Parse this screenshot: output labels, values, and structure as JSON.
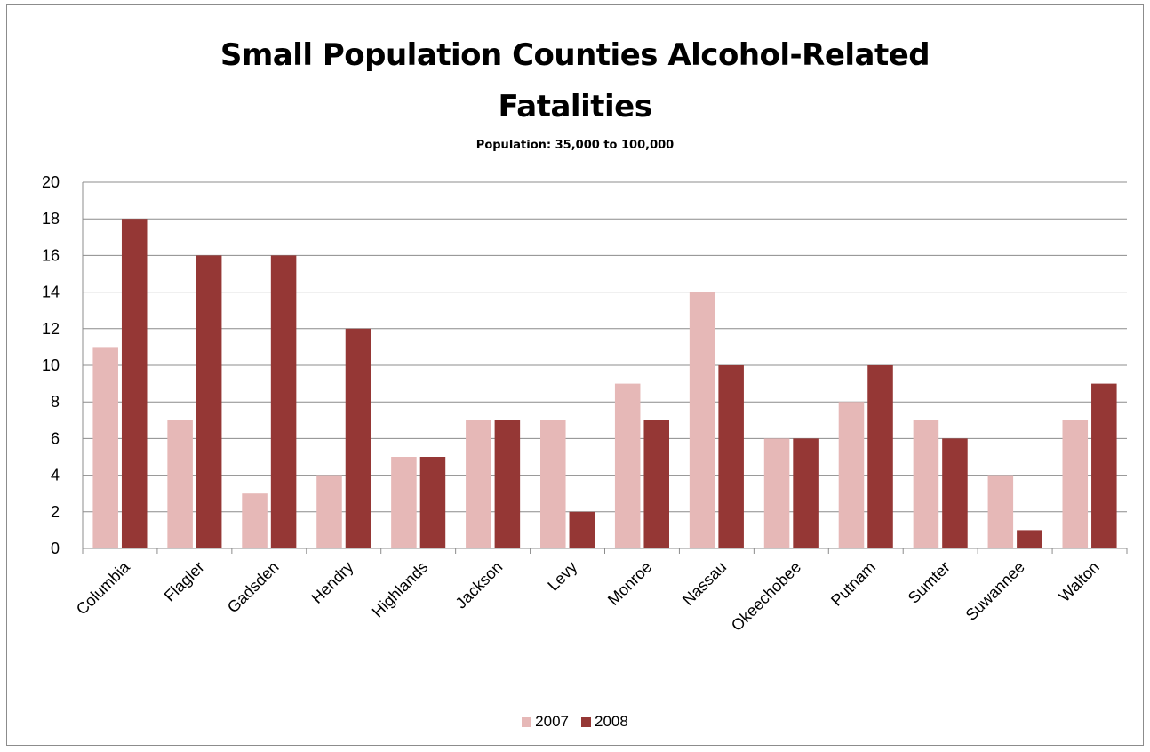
{
  "chart_data": {
    "type": "bar",
    "title_line1": "Small Population Counties Alcohol-Related",
    "title_line2": "Fatalities",
    "subtitle": "Population:  35,000 to 100,000",
    "xlabel": "",
    "ylabel": "",
    "ylim": [
      0,
      20
    ],
    "yticks": [
      "0",
      "2",
      "4",
      "6",
      "8",
      "10",
      "12",
      "14",
      "16",
      "18",
      "20"
    ],
    "grid": true,
    "legend_position": "bottom",
    "categories": [
      "Columbia",
      "Flagler",
      "Gadsden",
      "Hendry",
      "Highlands",
      "Jackson",
      "Levy",
      "Monroe",
      "Nassau",
      "Okeechobee",
      "Putnam",
      "Sumter",
      "Suwannee",
      "Walton"
    ],
    "series": [
      {
        "name": "2007",
        "color": "#e6b8b7",
        "values": [
          11,
          7,
          3,
          4,
          5,
          7,
          7,
          9,
          14,
          6,
          8,
          7,
          4,
          7
        ]
      },
      {
        "name": "2008",
        "color": "#953735",
        "values": [
          18,
          16,
          16,
          12,
          5,
          7,
          2,
          7,
          10,
          6,
          10,
          6,
          1,
          9
        ]
      }
    ]
  }
}
